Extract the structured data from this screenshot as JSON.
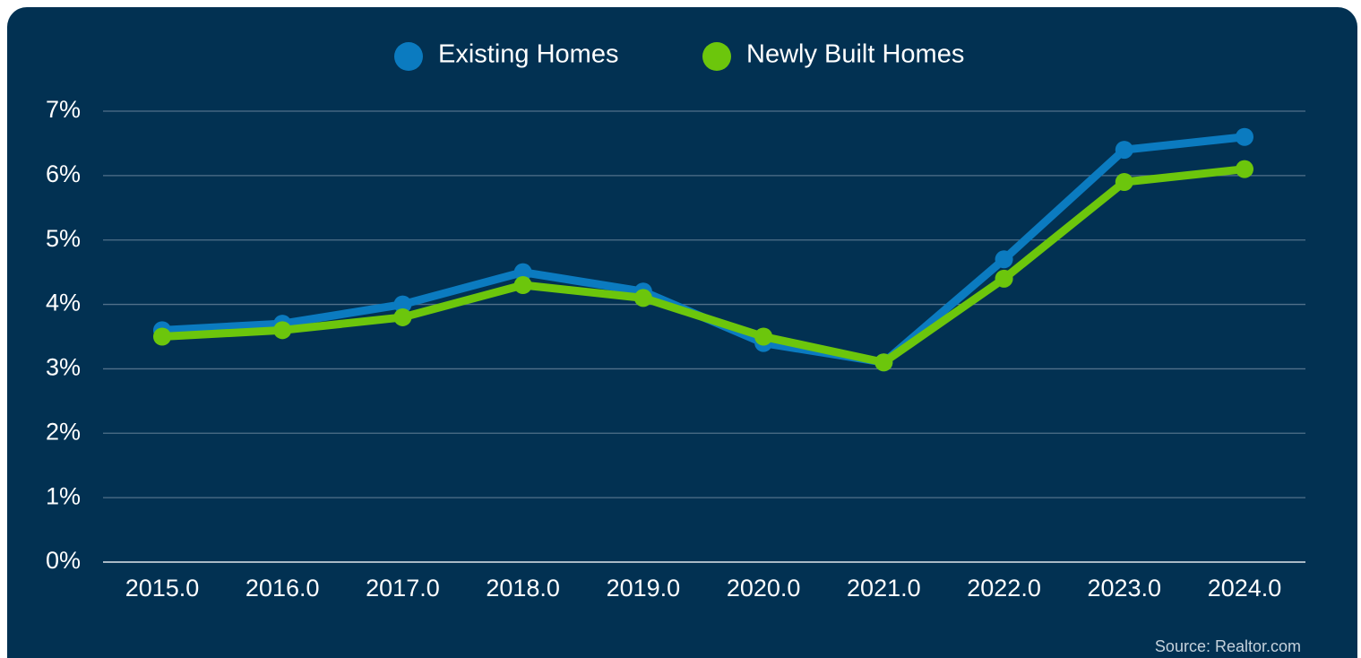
{
  "chart_data": {
    "type": "line",
    "categories": [
      "2015.0",
      "2016.0",
      "2017.0",
      "2018.0",
      "2019.0",
      "2020.0",
      "2021.0",
      "2022.0",
      "2023.0",
      "2024.0"
    ],
    "series": [
      {
        "name": "Existing Homes",
        "color": "#0b7bc0",
        "values": [
          3.6,
          3.7,
          4.0,
          4.5,
          4.2,
          3.4,
          3.1,
          4.7,
          6.4,
          6.6
        ]
      },
      {
        "name": "Newly Built Homes",
        "color": "#6cc60c",
        "values": [
          3.5,
          3.6,
          3.8,
          4.3,
          4.1,
          3.5,
          3.1,
          4.4,
          5.9,
          6.1
        ]
      }
    ],
    "ylim": [
      0,
      7
    ],
    "yticks": [
      {
        "value": 0,
        "label": "0%"
      },
      {
        "value": 1,
        "label": "1%"
      },
      {
        "value": 2,
        "label": "2%"
      },
      {
        "value": 3,
        "label": "3%"
      },
      {
        "value": 4,
        "label": "4%"
      },
      {
        "value": 5,
        "label": "5%"
      },
      {
        "value": 6,
        "label": "6%"
      },
      {
        "value": 7,
        "label": "7%"
      }
    ],
    "grid": true,
    "legend": "top",
    "source": "Source: Realtor.com"
  }
}
